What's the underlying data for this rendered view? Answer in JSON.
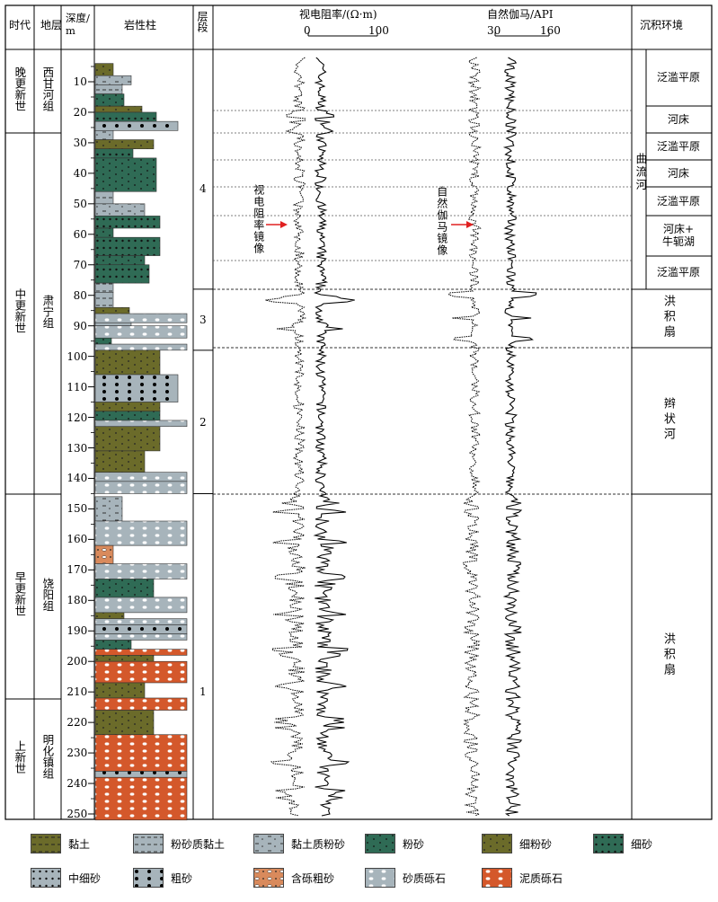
{
  "headers": {
    "era": "时代",
    "formation": "地层",
    "depth": "深度/\nm",
    "lithology": "岩性柱",
    "layer": "层段",
    "env": "沉积环境"
  },
  "logs": {
    "resistivity": {
      "title": "视电阻率/(Ω·m)",
      "min": "0",
      "max": "100",
      "mirror_label": "视电阻率镜像"
    },
    "gamma": {
      "title": "自然伽马/API",
      "min": "30",
      "max": "160",
      "mirror_label": "自然伽马镜像"
    }
  },
  "eras": [
    {
      "label": "晚更新世",
      "top": 55,
      "bottom": 148
    },
    {
      "label": "中更新世",
      "top": 148,
      "bottom": 550
    },
    {
      "label": "早更新世",
      "top": 550,
      "bottom": 778
    },
    {
      "label": "上新世",
      "top": 778,
      "bottom": 912
    }
  ],
  "formations": [
    {
      "label": "西甘河组",
      "top": 55,
      "bottom": 148
    },
    {
      "label": "肃宁组",
      "top": 148,
      "bottom": 550
    },
    {
      "label": "饶阳组",
      "top": 550,
      "bottom": 778
    },
    {
      "label": "明化镇组",
      "top": 778,
      "bottom": 912
    }
  ],
  "depth_ticks": [
    "10",
    "20",
    "30",
    "40",
    "50",
    "60",
    "70",
    "80",
    "90",
    "100",
    "110",
    "120",
    "130",
    "140",
    "150",
    "160",
    "170",
    "180",
    "190",
    "200",
    "210",
    "220",
    "230",
    "240",
    "250"
  ],
  "layers": [
    {
      "label": "4",
      "top_m": 5,
      "bottom_m": 78
    },
    {
      "label": "3",
      "top_m": 78,
      "bottom_m": 98
    },
    {
      "label": "2",
      "top_m": 98,
      "bottom_m": 145
    },
    {
      "label": "1",
      "top_m": 145,
      "bottom_m": 252
    }
  ],
  "environments": {
    "meander_label": "曲流河",
    "meander": [
      {
        "label": "泛滥平原",
        "top": 55,
        "bottom": 118
      },
      {
        "label": "河床",
        "top": 118,
        "bottom": 148
      },
      {
        "label": "泛滥平原",
        "top": 148,
        "bottom": 178
      },
      {
        "label": "河床",
        "top": 178,
        "bottom": 208
      },
      {
        "label": "泛滥平原",
        "top": 208,
        "bottom": 240
      },
      {
        "label": "河床+\n牛轭湖",
        "top": 240,
        "bottom": 285
      },
      {
        "label": "泛滥平原",
        "top": 285,
        "bottom": 322
      }
    ],
    "others": [
      {
        "label": "洪积扇",
        "top": 322,
        "bottom": 387,
        "vertical": true
      },
      {
        "label": "辫状河",
        "top": 387,
        "bottom": 550,
        "vertical": true
      },
      {
        "label": "洪积扇",
        "top": 550,
        "bottom": 912,
        "vertical": true
      }
    ]
  },
  "legend": [
    {
      "label": "黏土",
      "color": "#6b6b2a",
      "dots": "dash",
      "dotcolor": "#222"
    },
    {
      "label": "粉砂质黏土",
      "color": "#a7b4bb",
      "dots": "dash",
      "dotcolor": "#333"
    },
    {
      "label": "黏土质粉砂",
      "color": "#a7b4bb",
      "dots": "dashdot",
      "dotcolor": "#333"
    },
    {
      "label": "粉砂",
      "color": "#2f6b55",
      "dots": "dot",
      "dotcolor": "#111"
    },
    {
      "label": "细粉砂",
      "color": "#6b6b2a",
      "dots": "dot",
      "dotcolor": "#222"
    },
    {
      "label": "细砂",
      "color": "#2f6b55",
      "dots": "bigdot",
      "dotcolor": "#111"
    },
    {
      "label": "中细砂",
      "color": "#a7b4bb",
      "dots": "bigdot",
      "dotcolor": "#111"
    },
    {
      "label": "粗砂",
      "color": "#a7b4bb",
      "dots": "blackdot",
      "dotcolor": "#000"
    },
    {
      "label": "含砾粗砂",
      "color": "#d98a5c",
      "dots": "mix",
      "dotcolor": "#333"
    },
    {
      "label": "砂质砾石",
      "color": "#a7b4bb",
      "dots": "oval",
      "dotcolor": "#fff"
    },
    {
      "label": "泥质砾石",
      "color": "#d4582b",
      "dots": "oval",
      "dotcolor": "#fff"
    }
  ],
  "lith_layers": [
    {
      "top_m": 4,
      "bottom_m": 8,
      "type": 4,
      "width": 20
    },
    {
      "top_m": 8,
      "bottom_m": 11,
      "type": 2,
      "width": 40
    },
    {
      "top_m": 11,
      "bottom_m": 14,
      "type": 1,
      "width": 30
    },
    {
      "top_m": 14,
      "bottom_m": 18,
      "type": 3,
      "width": 32
    },
    {
      "top_m": 18,
      "bottom_m": 20,
      "type": 4,
      "width": 52
    },
    {
      "top_m": 20,
      "bottom_m": 23,
      "type": 5,
      "width": 68
    },
    {
      "top_m": 23,
      "bottom_m": 26,
      "type": 7,
      "width": 92
    },
    {
      "top_m": 26,
      "bottom_m": 29,
      "type": 2,
      "width": 20
    },
    {
      "top_m": 29,
      "bottom_m": 32,
      "type": 4,
      "width": 65
    },
    {
      "top_m": 32,
      "bottom_m": 35,
      "type": 5,
      "width": 42
    },
    {
      "top_m": 35,
      "bottom_m": 46,
      "type": 3,
      "width": 68
    },
    {
      "top_m": 46,
      "bottom_m": 50,
      "type": 1,
      "width": 20
    },
    {
      "top_m": 50,
      "bottom_m": 54,
      "type": 2,
      "width": 55
    },
    {
      "top_m": 54,
      "bottom_m": 58,
      "type": 5,
      "width": 72
    },
    {
      "top_m": 58,
      "bottom_m": 61,
      "type": 3,
      "width": 20
    },
    {
      "top_m": 61,
      "bottom_m": 67,
      "type": 5,
      "width": 72
    },
    {
      "top_m": 67,
      "bottom_m": 70,
      "type": 3,
      "width": 55
    },
    {
      "top_m": 70,
      "bottom_m": 76,
      "type": 5,
      "width": 60
    },
    {
      "top_m": 76,
      "bottom_m": 79,
      "type": 1,
      "width": 20
    },
    {
      "top_m": 79,
      "bottom_m": 84,
      "type": 1,
      "width": 20
    },
    {
      "top_m": 84,
      "bottom_m": 86,
      "type": 4,
      "width": 38
    },
    {
      "top_m": 86,
      "bottom_m": 89,
      "type": 9,
      "width": 102
    },
    {
      "top_m": 89,
      "bottom_m": 90,
      "type": 1,
      "width": 40
    },
    {
      "top_m": 90,
      "bottom_m": 94,
      "type": 9,
      "width": 102
    },
    {
      "top_m": 94,
      "bottom_m": 96,
      "type": 3,
      "width": 18
    },
    {
      "top_m": 96,
      "bottom_m": 98,
      "type": 9,
      "width": 102
    },
    {
      "top_m": 98,
      "bottom_m": 106,
      "type": 4,
      "width": 72
    },
    {
      "top_m": 106,
      "bottom_m": 115,
      "type": 7,
      "width": 92
    },
    {
      "top_m": 115,
      "bottom_m": 118,
      "type": 4,
      "width": 72
    },
    {
      "top_m": 118,
      "bottom_m": 121,
      "type": 3,
      "width": 72
    },
    {
      "top_m": 121,
      "bottom_m": 123,
      "type": 9,
      "width": 102
    },
    {
      "top_m": 123,
      "bottom_m": 131,
      "type": 4,
      "width": 72
    },
    {
      "top_m": 131,
      "bottom_m": 138,
      "type": 4,
      "width": 55
    },
    {
      "top_m": 138,
      "bottom_m": 141,
      "type": 9,
      "width": 102
    },
    {
      "top_m": 141,
      "bottom_m": 145,
      "type": 9,
      "width": 102
    },
    {
      "top_m": 146,
      "bottom_m": 154,
      "type": 2,
      "width": 30
    },
    {
      "top_m": 154,
      "bottom_m": 162,
      "type": 9,
      "width": 102
    },
    {
      "top_m": 162,
      "bottom_m": 168,
      "type": 8,
      "width": 20
    },
    {
      "top_m": 168,
      "bottom_m": 173,
      "type": 9,
      "width": 102
    },
    {
      "top_m": 173,
      "bottom_m": 179,
      "type": 3,
      "width": 65
    },
    {
      "top_m": 179,
      "bottom_m": 184,
      "type": 9,
      "width": 102
    },
    {
      "top_m": 184,
      "bottom_m": 186,
      "type": 4,
      "width": 32
    },
    {
      "top_m": 186,
      "bottom_m": 188,
      "type": 9,
      "width": 102
    },
    {
      "top_m": 188,
      "bottom_m": 191,
      "type": 7,
      "width": 102
    },
    {
      "top_m": 191,
      "bottom_m": 193,
      "type": 9,
      "width": 102
    },
    {
      "top_m": 193,
      "bottom_m": 196,
      "type": 3,
      "width": 40
    },
    {
      "top_m": 196,
      "bottom_m": 198,
      "type": 10,
      "width": 102
    },
    {
      "top_m": 198,
      "bottom_m": 200,
      "type": 4,
      "width": 65
    },
    {
      "top_m": 200,
      "bottom_m": 207,
      "type": 10,
      "width": 102
    },
    {
      "top_m": 207,
      "bottom_m": 212,
      "type": 4,
      "width": 55
    },
    {
      "top_m": 212,
      "bottom_m": 216,
      "type": 10,
      "width": 102
    },
    {
      "top_m": 216,
      "bottom_m": 224,
      "type": 4,
      "width": 65
    },
    {
      "top_m": 224,
      "bottom_m": 236,
      "type": 10,
      "width": 102
    },
    {
      "top_m": 236,
      "bottom_m": 238,
      "type": 7,
      "width": 102
    },
    {
      "top_m": 238,
      "bottom_m": 252,
      "type": 10,
      "width": 102
    }
  ]
}
